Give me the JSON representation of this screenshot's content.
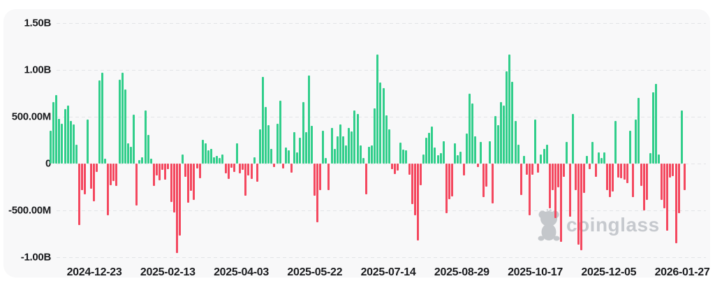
{
  "watermark": {
    "brand": "coinglass"
  },
  "chart_data": {
    "type": "bar",
    "title": "",
    "grid": true,
    "legend_position": "none",
    "ylim_millions": [
      -1000,
      1500
    ],
    "y_ticks": [
      {
        "value": 1500,
        "label": "1.50B"
      },
      {
        "value": 1000,
        "label": "1.00B"
      },
      {
        "value": 500,
        "label": "500.00M"
      },
      {
        "value": 0,
        "label": "0"
      },
      {
        "value": -500,
        "label": "-500.00M"
      },
      {
        "value": -1000,
        "label": "-1.00B"
      }
    ],
    "x_ticks": [
      "2024-12-23",
      "2025-02-13",
      "2025-04-03",
      "2025-05-22",
      "2025-07-14",
      "2025-08-29",
      "2025-10-17",
      "2025-12-05",
      "2026-01-27"
    ],
    "positive_color": "#31ce8b",
    "negative_color": "#f4485f",
    "values_unit": "millions",
    "values": [
      350,
      660,
      730,
      480,
      430,
      580,
      620,
      455,
      420,
      200,
      -660,
      -280,
      -330,
      470,
      -270,
      -400,
      -90,
      890,
      970,
      50,
      -550,
      -230,
      -190,
      -240,
      900,
      970,
      790,
      220,
      180,
      520,
      -450,
      35,
      65,
      570,
      305,
      50,
      -240,
      -130,
      -180,
      -65,
      -175,
      -60,
      -410,
      -520,
      -960,
      -770,
      95,
      -145,
      -415,
      -290,
      -390,
      -55,
      -160,
      256,
      219,
      144,
      157,
      70,
      82,
      57,
      95,
      -105,
      -167,
      -42,
      -92,
      219,
      -105,
      -67,
      -340,
      -130,
      -167,
      70,
      -192,
      365,
      925,
      605,
      415,
      160,
      -40,
      430,
      670,
      -55,
      175,
      140,
      -95,
      340,
      120,
      280,
      660,
      340,
      940,
      405,
      -340,
      -630,
      -280,
      355,
      57,
      -280,
      380,
      157,
      293,
      418,
      293,
      194,
      380,
      343,
      567,
      530,
      194,
      57,
      -328,
      182,
      194,
      592,
      1170,
      870,
      805,
      515,
      365,
      -60,
      -110,
      -75,
      225,
      150,
      140,
      -120,
      -430,
      -550,
      -825,
      -230,
      100,
      280,
      330,
      395,
      175,
      90,
      110,
      240,
      -530,
      -380,
      -350,
      220,
      90,
      130,
      -130,
      320,
      745,
      645,
      290,
      -40,
      230,
      -360,
      -245,
      240,
      -425,
      510,
      415,
      655,
      620,
      990,
      1170,
      875,
      455,
      200,
      -335,
      85,
      -120,
      -555,
      -120,
      470,
      -95,
      95,
      160,
      200,
      -475,
      -285,
      -580,
      -250,
      -835,
      -145,
      235,
      -565,
      530,
      -285,
      -870,
      -925,
      -310,
      80,
      -60,
      235,
      -145,
      120,
      60,
      120,
      -285,
      -360,
      -300,
      455,
      -150,
      -160,
      -170,
      -210,
      355,
      -360,
      470,
      700,
      -240,
      -500,
      -390,
      110,
      760,
      850,
      100,
      -390,
      -480,
      -720,
      -150,
      -135,
      -850,
      -530,
      565,
      -285
    ]
  }
}
